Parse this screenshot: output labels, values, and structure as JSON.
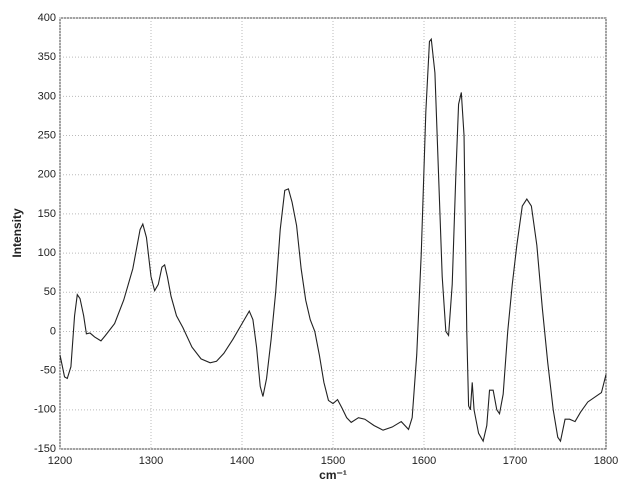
{
  "chart_data": {
    "type": "line",
    "xlabel": "cm⁻¹",
    "ylabel": "Intensity",
    "grid": true,
    "color": "#222222",
    "xlim": [
      1200,
      1800
    ],
    "xticks": [
      1200,
      1300,
      1400,
      1500,
      1600,
      1700,
      1800
    ],
    "ylim": [
      -150,
      400
    ],
    "yticks": [
      -150,
      -100,
      -50,
      0,
      50,
      100,
      150,
      200,
      250,
      300,
      350,
      400
    ],
    "x": [
      1200,
      1205,
      1208,
      1212,
      1216,
      1219,
      1222,
      1226,
      1229,
      1233,
      1238,
      1245,
      1250,
      1260,
      1270,
      1280,
      1288,
      1291,
      1295,
      1300,
      1304,
      1308,
      1312,
      1315,
      1318,
      1322,
      1328,
      1335,
      1345,
      1355,
      1365,
      1372,
      1380,
      1390,
      1400,
      1408,
      1412,
      1416,
      1420,
      1423,
      1427,
      1432,
      1437,
      1442,
      1447,
      1451,
      1455,
      1460,
      1465,
      1470,
      1475,
      1480,
      1485,
      1490,
      1495,
      1500,
      1505,
      1510,
      1515,
      1520,
      1528,
      1535,
      1545,
      1555,
      1565,
      1575,
      1583,
      1587,
      1592,
      1597,
      1602,
      1606,
      1608,
      1612,
      1616,
      1620,
      1624,
      1627,
      1631,
      1635,
      1638,
      1641,
      1644,
      1647,
      1649,
      1651,
      1653,
      1655,
      1660,
      1665,
      1669,
      1672,
      1676,
      1680,
      1683,
      1687,
      1692,
      1697,
      1702,
      1708,
      1713,
      1718,
      1724,
      1730,
      1736,
      1742,
      1747,
      1750,
      1755,
      1760,
      1766,
      1772,
      1780,
      1790,
      1795,
      1800
    ],
    "values": [
      -30,
      -58,
      -60,
      -45,
      20,
      47,
      42,
      20,
      -3,
      -2,
      -7,
      -12,
      -5,
      10,
      40,
      80,
      130,
      137,
      120,
      70,
      52,
      60,
      82,
      85,
      70,
      45,
      20,
      5,
      -20,
      -35,
      -40,
      -38,
      -28,
      -10,
      10,
      26,
      15,
      -20,
      -70,
      -83,
      -60,
      -10,
      50,
      130,
      180,
      182,
      165,
      135,
      80,
      40,
      15,
      0,
      -30,
      -65,
      -88,
      -92,
      -87,
      -98,
      -110,
      -116,
      -110,
      -112,
      -120,
      -126,
      -122,
      -115,
      -125,
      -110,
      -30,
      100,
      280,
      370,
      373,
      330,
      200,
      70,
      0,
      -5,
      60,
      200,
      290,
      305,
      250,
      0,
      -95,
      -100,
      -65,
      -100,
      -130,
      -140,
      -120,
      -75,
      -75,
      -100,
      -105,
      -80,
      0,
      60,
      110,
      160,
      169,
      160,
      110,
      30,
      -40,
      -100,
      -135,
      -140,
      -112,
      -112,
      -115,
      -103,
      -90,
      -82,
      -78,
      -55
    ]
  }
}
